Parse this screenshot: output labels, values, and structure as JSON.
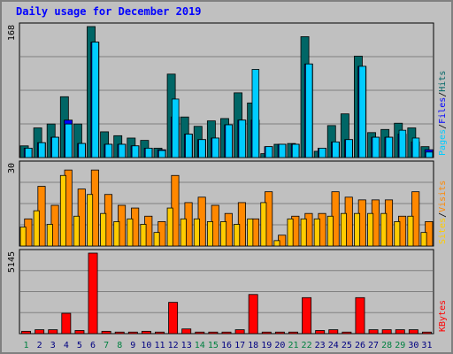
{
  "colors": {
    "background": "#c0c0c0",
    "title": "#0000ff",
    "pages": "#00ccff",
    "files": "#0000ff",
    "hits": "#006666",
    "sites": "#ffcc00",
    "visits": "#ff8800",
    "kbytes": "#ff0000",
    "weekend": "#008040",
    "weekday": "#000080"
  },
  "chart_data": {
    "title": "Daily usage for December 2019",
    "type": "bar",
    "days": [
      "1",
      "2",
      "3",
      "4",
      "5",
      "6",
      "7",
      "8",
      "9",
      "10",
      "11",
      "12",
      "13",
      "14",
      "15",
      "16",
      "17",
      "18",
      "19",
      "20",
      "21",
      "22",
      "23",
      "24",
      "25",
      "26",
      "27",
      "28",
      "29",
      "30",
      "31"
    ],
    "weekend_days": [
      "1",
      "7",
      "8",
      "14",
      "15",
      "21",
      "22",
      "28",
      "29"
    ],
    "panels": [
      {
        "name": "hits-files-pages",
        "ymax_label": "168",
        "ymax": 168,
        "legend": [
          "Pages",
          "/",
          "Files",
          "/",
          "Hits"
        ],
        "series": [
          {
            "name": "Hits",
            "values": [
              15,
              38,
              43,
              78,
              43,
              168,
              33,
              28,
              25,
              22,
              12,
              107,
              52,
              40,
              47,
              50,
              83,
              70,
              5,
              17,
              18,
              155,
              8,
              41,
              56,
              130,
              32,
              36,
              44,
              38,
              14
            ]
          },
          {
            "name": "Files",
            "values": [
              12,
              19,
              26,
              48,
              18,
              148,
              17,
              17,
              15,
              12,
              10,
              52,
              30,
              23,
              25,
              42,
              48,
              48,
              14,
              17,
              17,
              120,
              12,
              20,
              23,
              117,
              26,
              26,
              30,
              20,
              10
            ]
          },
          {
            "name": "Pages",
            "values": [
              12,
              19,
              26,
              43,
              18,
              148,
              17,
              17,
              15,
              12,
              9,
              75,
              30,
              23,
              25,
              42,
              48,
              113,
              14,
              17,
              17,
              120,
              12,
              20,
              23,
              117,
              26,
              26,
              35,
              25,
              7
            ]
          }
        ]
      },
      {
        "name": "visits-sites",
        "ymax_label": "30",
        "ymax": 30,
        "legend": [
          "Sites",
          "/",
          "Visits"
        ],
        "series": [
          {
            "name": "Visits",
            "values": [
              10,
              22,
              15,
              28,
              21,
              28,
              19,
              15,
              14,
              11,
              9,
              26,
              16,
              18,
              15,
              12,
              16,
              10,
              20,
              4,
              11,
              12,
              12,
              20,
              18,
              17,
              17,
              17,
              11,
              20,
              9
            ]
          },
          {
            "name": "Sites",
            "values": [
              7,
              13,
              8,
              26,
              11,
              19,
              12,
              9,
              10,
              8,
              5,
              14,
              10,
              10,
              9,
              9,
              8,
              10,
              16,
              2,
              10,
              10,
              10,
              11,
              12,
              12,
              12,
              12,
              9,
              11,
              5
            ]
          }
        ]
      },
      {
        "name": "kbytes",
        "ymax_label": "5145",
        "ymax": 5145,
        "legend": [
          "KBytes"
        ],
        "series": [
          {
            "name": "KBytes",
            "values": [
              150,
              250,
              250,
              1300,
              200,
              5145,
              150,
              100,
              100,
              150,
              100,
              2000,
              300,
              100,
              100,
              100,
              250,
              2500,
              100,
              100,
              100,
              2300,
              200,
              250,
              100,
              2300,
              250,
              250,
              250,
              250,
              100
            ]
          }
        ]
      }
    ]
  }
}
